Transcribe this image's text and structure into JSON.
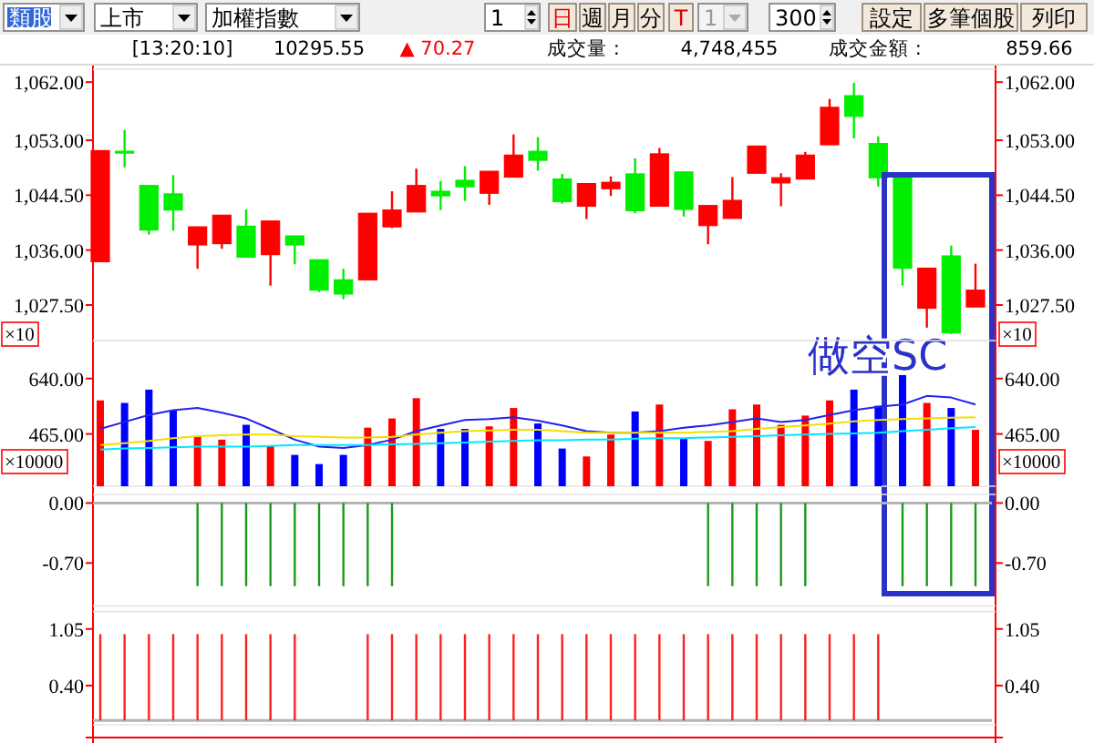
{
  "chart_data": [
    {
      "type": "other",
      "annotations": [
        "類股",
        "上市",
        "加權指數",
        "1",
        "日",
        "週",
        "月",
        "分",
        "T",
        "1",
        "300",
        "設定",
        "多筆個股",
        "列印",
        "[13:20:10]",
        "10295.55",
        "▲ 70.27",
        "成交量 :",
        "4,748,455",
        "成交金額 :",
        "859.66"
      ]
    },
    {
      "type": "candlestick",
      "categories": [
        null,
        null,
        null,
        null,
        null,
        null,
        null,
        null,
        null,
        null,
        null,
        null,
        null,
        null,
        null,
        null,
        null,
        null,
        null,
        null,
        null,
        null,
        null,
        null,
        null,
        null,
        null,
        null,
        null,
        null,
        null,
        null,
        null,
        null,
        null,
        null,
        null
      ],
      "ohlc": [
        [
          1034.2,
          1051.4,
          1034.2,
          1051.4
        ],
        [
          1051.3,
          1054.6,
          1048.8,
          1051.3
        ],
        [
          1046.0,
          1046.0,
          1038.4,
          1039.1
        ],
        [
          1044.7,
          1047.6,
          1039.0,
          1042.2
        ],
        [
          1036.8,
          1039.6,
          1033.1,
          1039.6
        ],
        [
          1037.0,
          1041.4,
          1036.2,
          1041.4
        ],
        [
          1039.7,
          1042.3,
          1034.9,
          1034.9
        ],
        [
          1035.3,
          1040.5,
          1030.5,
          1040.5
        ],
        [
          1038.2,
          1038.2,
          1033.8,
          1036.8
        ],
        [
          1034.5,
          1034.5,
          1029.5,
          1029.8
        ],
        [
          1031.4,
          1033.1,
          1028.4,
          1029.2
        ],
        [
          1031.4,
          1041.7,
          1031.4,
          1041.7
        ],
        [
          1039.6,
          1045.1,
          1039.4,
          1042.2
        ],
        [
          1041.9,
          1048.6,
          1041.9,
          1046.0
        ],
        [
          1045.1,
          1046.7,
          1042.2,
          1044.4
        ],
        [
          1046.8,
          1049.0,
          1043.6,
          1045.8
        ],
        [
          1044.8,
          1048.2,
          1043.0,
          1048.2
        ],
        [
          1047.3,
          1053.9,
          1047.3,
          1050.7
        ],
        [
          1051.3,
          1053.5,
          1048.3,
          1049.9
        ],
        [
          1047.0,
          1047.8,
          1043.2,
          1043.5
        ],
        [
          1042.8,
          1046.3,
          1040.8,
          1046.3
        ],
        [
          1045.5,
          1047.4,
          1044.4,
          1046.5
        ],
        [
          1047.8,
          1050.2,
          1041.7,
          1042.1
        ],
        [
          1042.8,
          1051.8,
          1042.8,
          1050.9
        ],
        [
          1048.1,
          1048.1,
          1041.2,
          1042.3
        ],
        [
          1039.8,
          1042.9,
          1036.9,
          1042.9
        ],
        [
          1040.9,
          1047.3,
          1040.9,
          1043.7
        ],
        [
          1047.9,
          1052.1,
          1047.9,
          1052.1
        ],
        [
          1046.4,
          1047.9,
          1042.8,
          1047.2
        ],
        [
          1047.0,
          1051.2,
          1047.0,
          1050.7
        ],
        [
          1052.3,
          1059.4,
          1052.3,
          1058.1
        ],
        [
          1059.9,
          1061.9,
          1053.3,
          1056.7
        ],
        [
          1052.5,
          1053.6,
          1045.8,
          1047.2
        ],
        [
          1047.5,
          1047.5,
          1030.5,
          1033.2
        ],
        [
          1027.0,
          1033.2,
          1024.0,
          1033.2
        ],
        [
          1035.1,
          1036.7,
          1023.0,
          1023.2
        ],
        [
          1027.2,
          1033.9,
          1027.2,
          1029.8
        ]
      ],
      "colors": [
        "#ff0000",
        "#00ee00",
        "#00ee00",
        "#00ee00",
        "#ff0000",
        "#ff0000",
        "#00ee00",
        "#ff0000",
        "#00ee00",
        "#00ee00",
        "#00ee00",
        "#ff0000",
        "#ff0000",
        "#ff0000",
        "#00ee00",
        "#00ee00",
        "#ff0000",
        "#ff0000",
        "#00ee00",
        "#00ee00",
        "#ff0000",
        "#ff0000",
        "#00ee00",
        "#ff0000",
        "#00ee00",
        "#ff0000",
        "#ff0000",
        "#ff0000",
        "#ff0000",
        "#ff0000",
        "#ff0000",
        "#00ee00",
        "#00ee00",
        "#00ee00",
        "#ff0000",
        "#00ee00",
        "#ff0000"
      ],
      "ylim": [
        1022,
        1064
      ],
      "yticks": [
        {
          "value": 1062,
          "label": "1,062.00"
        },
        {
          "value": 1053,
          "label": "1,053.00"
        },
        {
          "value": 1044.5,
          "label": "1,044.50"
        },
        {
          "value": 1036,
          "label": "1,036.00"
        },
        {
          "value": 1027.5,
          "label": "1,027.50"
        }
      ],
      "y2lim": [
        1022,
        1064
      ],
      "y2ticks": [
        {
          "value": 1062,
          "label": "1,062.00"
        },
        {
          "value": 1053,
          "label": "1,053.00"
        },
        {
          "value": 1044.5,
          "label": "1,044.50"
        },
        {
          "value": 1036,
          "label": "1,036.00"
        },
        {
          "value": 1027.5,
          "label": "1,027.50"
        }
      ],
      "tick_labels": "y",
      "annotations": [
        "做空SC"
      ]
    },
    {
      "type": "bar",
      "categories": [
        null,
        null,
        null,
        null,
        null,
        null,
        null,
        null,
        null,
        null,
        null,
        null,
        null,
        null,
        null,
        null,
        null,
        null,
        null,
        null,
        null,
        null,
        null,
        null,
        null,
        null,
        null,
        null,
        null,
        null,
        null,
        null,
        null,
        null,
        null,
        null,
        null
      ],
      "series": [
        {
          "type": "bar",
          "values": [
            571,
            563,
            605,
            540,
            456,
            447,
            494,
            427,
            399,
            370,
            399,
            485,
            514,
            578,
            481,
            481,
            489,
            547,
            498,
            419,
            394,
            463,
            536,
            558,
            452,
            443,
            543,
            558,
            494,
            523,
            571,
            605,
            554,
            651,
            563,
            547,
            478
          ],
          "colors": [
            "#ff0000",
            "#0000ff",
            "#0000ff",
            "#0000ff",
            "#ff0000",
            "#ff0000",
            "#0000ff",
            "#ff0000",
            "#0000ff",
            "#0000ff",
            "#0000ff",
            "#ff0000",
            "#ff0000",
            "#ff0000",
            "#0000ff",
            "#0000ff",
            "#ff0000",
            "#ff0000",
            "#0000ff",
            "#0000ff",
            "#ff0000",
            "#ff0000",
            "#0000ff",
            "#ff0000",
            "#0000ff",
            "#ff0000",
            "#ff0000",
            "#ff0000",
            "#ff0000",
            "#ff0000",
            "#ff0000",
            "#0000ff",
            "#0000ff",
            "#0000ff",
            "#ff0000",
            "#0000ff",
            "#ff0000"
          ]
        },
        {
          "type": "line",
          "color": "#2222ee",
          "values": [
            481,
            503,
            525,
            540,
            547,
            532,
            514,
            481,
            447,
            425,
            421,
            430,
            447,
            474,
            492,
            509,
            512,
            518,
            507,
            492,
            474,
            469,
            469,
            474,
            485,
            492,
            503,
            514,
            503,
            509,
            525,
            540,
            551,
            558,
            585,
            580,
            558
          ]
        },
        {
          "type": "line",
          "color": "#f0e000",
          "values": [
            430,
            436,
            443,
            452,
            458,
            461,
            463,
            463,
            458,
            456,
            454,
            454,
            456,
            463,
            469,
            474,
            476,
            478,
            478,
            474,
            469,
            469,
            469,
            469,
            469,
            472,
            474,
            481,
            487,
            492,
            498,
            505,
            509,
            512,
            514,
            516,
            518
          ]
        },
        {
          "type": "line",
          "color": "#00e8ff",
          "values": [
            416,
            419,
            421,
            423,
            425,
            425,
            425,
            427,
            430,
            430,
            430,
            430,
            432,
            434,
            436,
            438,
            441,
            443,
            445,
            445,
            447,
            447,
            450,
            452,
            452,
            454,
            456,
            458,
            461,
            463,
            465,
            467,
            469,
            474,
            478,
            483,
            487
          ]
        }
      ],
      "ylim": [
        300,
        760
      ],
      "yticks": [
        {
          "value": 640,
          "label": "640.00"
        },
        {
          "value": 465,
          "label": "465.00"
        }
      ],
      "y2lim": [
        300,
        760
      ],
      "y2ticks": [
        {
          "value": 640,
          "label": "640.00"
        },
        {
          "value": 465,
          "label": "465.00"
        }
      ],
      "tick_labels": "y",
      "annotations": [
        "×10",
        "×10000",
        "×10",
        "×10000"
      ]
    },
    {
      "type": "bar",
      "categories": [
        null,
        null,
        null,
        null,
        null,
        null,
        null,
        null,
        null,
        null,
        null,
        null,
        null,
        null,
        null,
        null,
        null,
        null,
        null,
        null,
        null,
        null,
        null,
        null,
        null,
        null,
        null,
        null,
        null,
        null,
        null,
        null,
        null,
        null,
        null,
        null,
        null
      ],
      "series": [
        {
          "type": "bar",
          "color": "#1a9a1a",
          "values": [
            null,
            null,
            null,
            null,
            -0.97,
            -0.97,
            -0.97,
            -0.97,
            -0.97,
            -0.97,
            -0.97,
            -0.97,
            -0.97,
            null,
            null,
            null,
            null,
            null,
            null,
            null,
            null,
            null,
            null,
            null,
            null,
            -0.97,
            -0.97,
            -0.97,
            -0.97,
            -0.97,
            null,
            null,
            null,
            -0.97,
            -0.97,
            -0.97,
            -0.97
          ]
        }
      ],
      "ylim": [
        -1.2,
        0.1
      ],
      "yticks": [
        {
          "value": 0,
          "label": "0.00"
        },
        {
          "value": -0.7,
          "label": "-0.70"
        }
      ],
      "y2lim": [
        -1.2,
        0.1
      ],
      "y2ticks": [
        {
          "value": 0,
          "label": "0.00"
        },
        {
          "value": -0.7,
          "label": "-0.70"
        }
      ],
      "tick_labels": "y",
      "ref_lines": [
        {
          "axis": "y",
          "value": 0,
          "color": "#b4b4b4"
        }
      ]
    },
    {
      "type": "bar",
      "categories": [
        null,
        null,
        null,
        null,
        null,
        null,
        null,
        null,
        null,
        null,
        null,
        null,
        null,
        null,
        null,
        null,
        null,
        null,
        null,
        null,
        null,
        null,
        null,
        null,
        null,
        null,
        null,
        null,
        null,
        null,
        null,
        null,
        null,
        null,
        null,
        null,
        null
      ],
      "series": [
        {
          "type": "bar",
          "color": "#ff2020",
          "values": [
            0.99,
            0.99,
            0.99,
            0.99,
            0.99,
            0.99,
            0.99,
            0.99,
            0.99,
            null,
            null,
            0.99,
            0.99,
            0.99,
            0.99,
            0.99,
            0.99,
            0.99,
            0.99,
            0.99,
            0.99,
            0.99,
            0.99,
            0.99,
            0.99,
            0.99,
            0.99,
            0.99,
            0.99,
            0.99,
            0.99,
            0.99,
            0.99,
            null,
            null,
            null,
            null
          ]
        }
      ],
      "ylim": [
        -0.05,
        1.25
      ],
      "yticks": [
        {
          "value": 1.05,
          "label": "1.05"
        },
        {
          "value": 0.4,
          "label": "0.40"
        }
      ],
      "y2lim": [
        -0.05,
        1.25
      ],
      "y2ticks": [
        {
          "value": 1.05,
          "label": "1.05"
        },
        {
          "value": 0.4,
          "label": "0.40"
        }
      ],
      "tick_labels": "y",
      "ref_lines": [
        {
          "axis": "y",
          "value": 0,
          "color": "#b4b4b4"
        }
      ]
    }
  ]
}
